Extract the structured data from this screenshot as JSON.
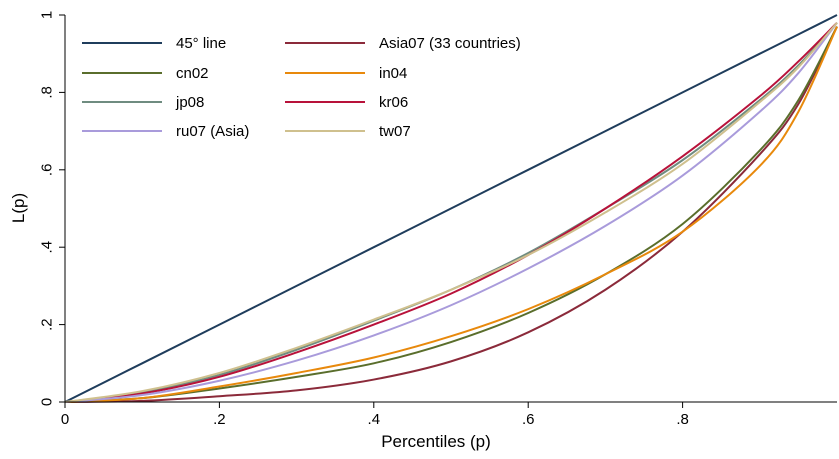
{
  "chart_data": {
    "type": "line",
    "xlabel": "Percentiles (p)",
    "ylabel": "L(p)",
    "xlim": [
      0,
      1
    ],
    "ylim": [
      0,
      1
    ],
    "x_ticks": [
      0,
      0.2,
      0.4,
      0.6,
      0.8
    ],
    "x_tick_labels": [
      "0",
      ".2",
      ".4",
      ".6",
      ".8"
    ],
    "y_ticks": [
      0,
      0.2,
      0.4,
      0.6,
      0.8,
      1
    ],
    "y_tick_labels": [
      "0",
      ".2",
      ".4",
      ".6",
      ".8",
      "1"
    ],
    "grid": false,
    "legend_position": "top-left",
    "x": [
      0,
      0.1,
      0.2,
      0.3,
      0.4,
      0.5,
      0.6,
      0.7,
      0.8,
      0.9,
      0.95,
      1.0
    ],
    "series": [
      {
        "name": "45° line",
        "color": "#1f3d5c",
        "values": [
          0,
          0.1,
          0.2,
          0.3,
          0.4,
          0.5,
          0.6,
          0.7,
          0.8,
          0.9,
          0.95,
          1.0
        ]
      },
      {
        "name": "Asia07 (33 countries)",
        "color": "#8b2a3a",
        "values": [
          0,
          0.003,
          0.015,
          0.03,
          0.058,
          0.105,
          0.18,
          0.29,
          0.44,
          0.64,
          0.77,
          0.97
        ]
      },
      {
        "name": "cn02",
        "color": "#5a6e2c",
        "values": [
          0,
          0.01,
          0.035,
          0.065,
          0.1,
          0.155,
          0.23,
          0.33,
          0.46,
          0.65,
          0.78,
          0.97
        ]
      },
      {
        "name": "in04",
        "color": "#e8890c",
        "values": [
          0,
          0.01,
          0.04,
          0.075,
          0.115,
          0.17,
          0.24,
          0.33,
          0.44,
          0.61,
          0.75,
          0.97
        ]
      },
      {
        "name": "jp08",
        "color": "#6f8c80",
        "values": [
          0,
          0.025,
          0.07,
          0.135,
          0.21,
          0.29,
          0.385,
          0.5,
          0.625,
          0.78,
          0.87,
          0.98
        ]
      },
      {
        "name": "kr06",
        "color": "#b8123a",
        "values": [
          0,
          0.022,
          0.065,
          0.128,
          0.2,
          0.28,
          0.38,
          0.5,
          0.635,
          0.79,
          0.88,
          0.98
        ]
      },
      {
        "name": "ru07 (Asia)",
        "color": "#a99bdb",
        "values": [
          0,
          0.018,
          0.055,
          0.107,
          0.172,
          0.25,
          0.345,
          0.455,
          0.585,
          0.75,
          0.85,
          0.98
        ]
      },
      {
        "name": "tw07",
        "color": "#cfc08e",
        "values": [
          0,
          0.028,
          0.075,
          0.14,
          0.213,
          0.29,
          0.38,
          0.49,
          0.615,
          0.775,
          0.865,
          0.98
        ]
      }
    ]
  }
}
